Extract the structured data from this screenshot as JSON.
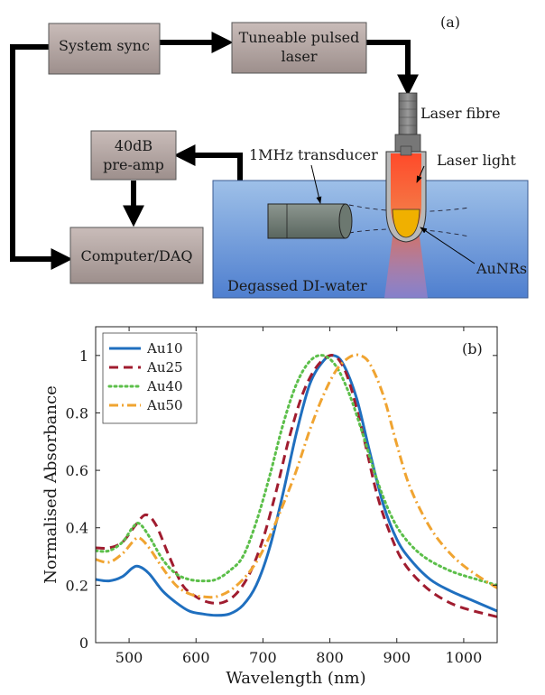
{
  "panel_a": {
    "label": "(a)",
    "boxes": {
      "system_sync": "System sync",
      "laser_line1": "Tuneable pulsed",
      "laser_line2": "laser",
      "preamp_line1": "40dB",
      "preamp_line2": "pre-amp",
      "computer": "Computer/DAQ"
    },
    "labels": {
      "laser_fibre": "Laser fibre",
      "laser_light": "Laser light",
      "transducer": "1MHz transducer",
      "aunrs": "AuNRs",
      "water": "Degassed DI-water"
    }
  },
  "chart_data": {
    "type": "line",
    "panel_label": "(b)",
    "xlabel": "Wavelength (nm)",
    "ylabel": "Normalised Absorbance",
    "xlim": [
      450,
      1050
    ],
    "ylim": [
      0,
      1.1
    ],
    "xticks": [
      500,
      600,
      700,
      800,
      900,
      1000
    ],
    "yticks": [
      0,
      0.2,
      0.4,
      0.6,
      0.8,
      1
    ],
    "ytick_labels": [
      "0",
      "0.2",
      "0.4",
      "0.6",
      "0.8",
      "1"
    ],
    "grid": false,
    "legend_position": "top-left",
    "series": [
      {
        "name": "Au10",
        "color": "#1f6fbf",
        "style": "solid",
        "points": [
          [
            450,
            0.22
          ],
          [
            470,
            0.215
          ],
          [
            490,
            0.23
          ],
          [
            505,
            0.26
          ],
          [
            515,
            0.265
          ],
          [
            530,
            0.24
          ],
          [
            550,
            0.18
          ],
          [
            570,
            0.14
          ],
          [
            590,
            0.11
          ],
          [
            610,
            0.1
          ],
          [
            630,
            0.095
          ],
          [
            650,
            0.1
          ],
          [
            670,
            0.13
          ],
          [
            690,
            0.2
          ],
          [
            710,
            0.33
          ],
          [
            730,
            0.52
          ],
          [
            750,
            0.73
          ],
          [
            770,
            0.9
          ],
          [
            790,
            0.98
          ],
          [
            805,
            1.0
          ],
          [
            820,
            0.97
          ],
          [
            840,
            0.85
          ],
          [
            860,
            0.66
          ],
          [
            880,
            0.48
          ],
          [
            900,
            0.36
          ],
          [
            920,
            0.29
          ],
          [
            950,
            0.22
          ],
          [
            980,
            0.18
          ],
          [
            1010,
            0.15
          ],
          [
            1050,
            0.11
          ]
        ]
      },
      {
        "name": "Au25",
        "color": "#a01c2f",
        "style": "dashed",
        "points": [
          [
            450,
            0.33
          ],
          [
            470,
            0.33
          ],
          [
            490,
            0.35
          ],
          [
            510,
            0.41
          ],
          [
            525,
            0.445
          ],
          [
            540,
            0.41
          ],
          [
            560,
            0.3
          ],
          [
            580,
            0.2
          ],
          [
            600,
            0.16
          ],
          [
            620,
            0.14
          ],
          [
            640,
            0.14
          ],
          [
            660,
            0.17
          ],
          [
            680,
            0.24
          ],
          [
            700,
            0.36
          ],
          [
            720,
            0.53
          ],
          [
            740,
            0.72
          ],
          [
            760,
            0.87
          ],
          [
            780,
            0.96
          ],
          [
            800,
            1.0
          ],
          [
            815,
            0.98
          ],
          [
            830,
            0.9
          ],
          [
            850,
            0.72
          ],
          [
            870,
            0.52
          ],
          [
            890,
            0.38
          ],
          [
            910,
            0.28
          ],
          [
            940,
            0.2
          ],
          [
            970,
            0.15
          ],
          [
            1000,
            0.12
          ],
          [
            1050,
            0.09
          ]
        ]
      },
      {
        "name": "Au40",
        "color": "#5cbf4a",
        "style": "dotted",
        "points": [
          [
            450,
            0.32
          ],
          [
            470,
            0.32
          ],
          [
            490,
            0.35
          ],
          [
            505,
            0.4
          ],
          [
            515,
            0.415
          ],
          [
            530,
            0.37
          ],
          [
            550,
            0.29
          ],
          [
            570,
            0.24
          ],
          [
            590,
            0.22
          ],
          [
            610,
            0.215
          ],
          [
            630,
            0.22
          ],
          [
            650,
            0.25
          ],
          [
            670,
            0.3
          ],
          [
            690,
            0.42
          ],
          [
            710,
            0.58
          ],
          [
            730,
            0.76
          ],
          [
            750,
            0.9
          ],
          [
            770,
            0.98
          ],
          [
            790,
            1.0
          ],
          [
            810,
            0.96
          ],
          [
            830,
            0.86
          ],
          [
            850,
            0.72
          ],
          [
            870,
            0.57
          ],
          [
            890,
            0.45
          ],
          [
            910,
            0.37
          ],
          [
            940,
            0.3
          ],
          [
            980,
            0.25
          ],
          [
            1020,
            0.22
          ],
          [
            1050,
            0.2
          ]
        ]
      },
      {
        "name": "Au50",
        "color": "#f0a431",
        "style": "dashdot",
        "points": [
          [
            450,
            0.29
          ],
          [
            470,
            0.28
          ],
          [
            490,
            0.31
          ],
          [
            505,
            0.35
          ],
          [
            515,
            0.365
          ],
          [
            530,
            0.33
          ],
          [
            550,
            0.26
          ],
          [
            570,
            0.2
          ],
          [
            590,
            0.17
          ],
          [
            610,
            0.16
          ],
          [
            630,
            0.16
          ],
          [
            650,
            0.18
          ],
          [
            670,
            0.22
          ],
          [
            690,
            0.28
          ],
          [
            710,
            0.37
          ],
          [
            730,
            0.48
          ],
          [
            750,
            0.6
          ],
          [
            770,
            0.74
          ],
          [
            790,
            0.86
          ],
          [
            810,
            0.95
          ],
          [
            830,
            0.995
          ],
          [
            845,
            1.0
          ],
          [
            860,
            0.97
          ],
          [
            880,
            0.86
          ],
          [
            900,
            0.69
          ],
          [
            920,
            0.54
          ],
          [
            950,
            0.4
          ],
          [
            980,
            0.31
          ],
          [
            1010,
            0.25
          ],
          [
            1050,
            0.19
          ]
        ]
      }
    ]
  }
}
